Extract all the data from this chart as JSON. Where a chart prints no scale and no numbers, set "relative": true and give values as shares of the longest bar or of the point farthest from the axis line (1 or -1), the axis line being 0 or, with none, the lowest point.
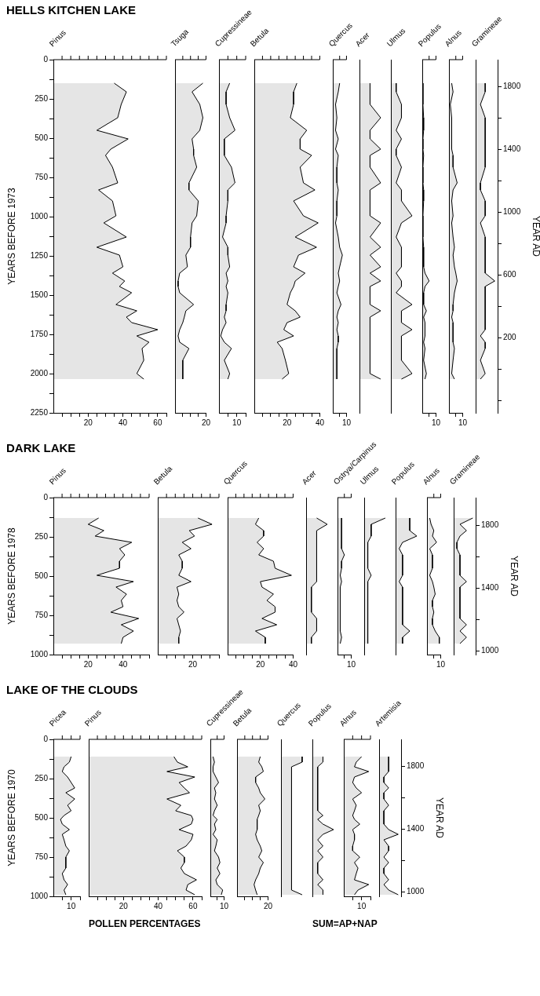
{
  "chart_data": [
    {
      "type": "area",
      "orientation": "horizontal",
      "title": "Pinus",
      "ylabel": "YEARS BEFORE 1973",
      "annotations": [
        "HELLS KITCHEN LAKE"
      ],
      "color": "#000000",
      "x": [
        150,
        205,
        285,
        370,
        450,
        505,
        570,
        610,
        685,
        785,
        830,
        900,
        995,
        1040,
        1130,
        1195,
        1245,
        1320,
        1360,
        1410,
        1445,
        1485,
        1560,
        1600,
        1640,
        1675,
        1720,
        1760,
        1800,
        1840,
        1915,
        2000,
        2035
      ],
      "values": [
        35,
        42,
        39,
        37,
        25,
        43,
        33,
        30,
        34,
        37,
        26,
        34,
        36,
        29,
        42,
        25,
        38,
        40,
        34,
        41,
        38,
        45,
        36,
        48,
        42,
        45,
        60,
        48,
        55,
        51,
        52,
        48,
        52
      ],
      "xlim": [
        0,
        65
      ],
      "xticks": [
        {
          "value": 5,
          "label": null
        },
        {
          "value": 10,
          "label": null
        },
        {
          "value": 15,
          "label": null
        },
        20,
        {
          "value": 25,
          "label": null
        },
        {
          "value": 30,
          "label": null
        },
        {
          "value": 35,
          "label": null
        },
        40,
        {
          "value": 45,
          "label": null
        },
        {
          "value": 50,
          "label": null
        },
        {
          "value": 55,
          "label": null
        },
        60,
        {
          "value": 65,
          "label": null
        }
      ],
      "ylim": [
        2250,
        0
      ],
      "yticks": [
        0,
        {
          "value": 125,
          "label": null
        },
        250,
        {
          "value": 375,
          "label": null
        },
        500,
        {
          "value": 625,
          "label": null
        },
        750,
        {
          "value": 875,
          "label": null
        },
        1000,
        {
          "value": 1125,
          "label": null
        },
        1250,
        {
          "value": 1375,
          "label": null
        },
        1500,
        {
          "value": 1625,
          "label": null
        },
        1750,
        {
          "value": 1875,
          "label": null
        },
        2000,
        {
          "value": 2125,
          "label": null
        },
        2250
      ]
    },
    {
      "type": "area",
      "orientation": "horizontal",
      "title": "Tsuga",
      "tick_labels": "x",
      "color": "#000000",
      "x": [
        150,
        205,
        285,
        370,
        450,
        505,
        570,
        610,
        685,
        785,
        830,
        900,
        995,
        1040,
        1130,
        1195,
        1245,
        1320,
        1360,
        1410,
        1445,
        1485,
        1560,
        1600,
        1640,
        1675,
        1720,
        1760,
        1800,
        1840,
        1915,
        2000,
        2035
      ],
      "values": [
        18,
        11,
        16,
        18,
        16,
        11,
        12,
        12,
        14,
        9,
        9,
        15,
        14,
        11,
        10,
        10,
        7,
        8,
        3,
        2,
        2,
        3,
        12,
        7,
        6,
        5,
        3,
        2,
        3,
        9,
        5,
        5,
        5
      ],
      "xlim": [
        0,
        20
      ],
      "xticks": [
        {
          "value": 5,
          "label": null
        },
        {
          "value": 10,
          "label": null
        },
        {
          "value": 15,
          "label": null
        },
        20
      ],
      "ylim": [
        2250,
        0
      ]
    },
    {
      "type": "area",
      "orientation": "horizontal",
      "title": "Cupressineae",
      "tick_labels": "x",
      "color": "#000000",
      "x": [
        150,
        205,
        285,
        370,
        450,
        505,
        570,
        610,
        685,
        785,
        830,
        900,
        995,
        1040,
        1130,
        1195,
        1245,
        1320,
        1360,
        1410,
        1445,
        1485,
        1560,
        1600,
        1640,
        1675,
        1720,
        1760,
        1800,
        1840,
        1915,
        2000,
        2035
      ],
      "values": [
        6,
        4,
        4,
        6,
        9,
        3,
        3,
        3,
        7,
        9,
        5,
        5,
        4,
        4,
        2,
        5,
        5,
        6,
        4,
        5,
        4,
        5,
        4,
        4,
        3,
        4,
        2,
        1,
        3,
        7,
        3,
        6,
        5
      ],
      "xlim": [
        0,
        15
      ],
      "xticks": [
        {
          "value": 5,
          "label": null
        },
        10,
        {
          "value": 15,
          "label": null
        }
      ],
      "ylim": [
        2250,
        0
      ]
    },
    {
      "type": "area",
      "orientation": "horizontal",
      "title": "Betula",
      "tick_labels": "x",
      "color": "#000000",
      "x": [
        150,
        205,
        285,
        370,
        450,
        505,
        570,
        610,
        685,
        785,
        830,
        900,
        995,
        1040,
        1130,
        1195,
        1245,
        1320,
        1360,
        1410,
        1445,
        1485,
        1560,
        1600,
        1640,
        1675,
        1720,
        1760,
        1800,
        1840,
        1915,
        2000,
        2035
      ],
      "values": [
        26,
        24,
        24,
        22,
        32,
        28,
        28,
        35,
        28,
        30,
        37,
        24,
        30,
        39,
        25,
        38,
        27,
        24,
        31,
        25,
        24,
        22,
        20,
        25,
        28,
        20,
        18,
        24,
        14,
        17,
        19,
        21,
        17
      ],
      "xlim": [
        0,
        40
      ],
      "xticks": [
        {
          "value": 5,
          "label": null
        },
        {
          "value": 10,
          "label": null
        },
        {
          "value": 15,
          "label": null
        },
        20,
        {
          "value": 25,
          "label": null
        },
        {
          "value": 30,
          "label": null
        },
        {
          "value": 35,
          "label": null
        },
        40
      ],
      "ylim": [
        2250,
        0
      ]
    },
    {
      "type": "area",
      "orientation": "horizontal",
      "title": "Quercus",
      "tick_labels": "x",
      "color": "#000000",
      "x": [
        150,
        205,
        285,
        370,
        450,
        505,
        570,
        610,
        685,
        785,
        830,
        900,
        995,
        1040,
        1130,
        1195,
        1245,
        1320,
        1360,
        1410,
        1445,
        1485,
        1560,
        1600,
        1640,
        1675,
        1720,
        1760,
        1800,
        1840,
        1915,
        2000,
        2035
      ],
      "values": [
        5,
        4,
        2,
        3,
        2,
        4,
        2,
        4,
        3,
        3,
        4,
        3,
        3,
        2,
        4,
        5,
        7,
        5,
        4,
        5,
        4,
        3,
        6,
        4,
        3,
        4,
        3,
        4,
        4,
        3,
        3,
        3,
        3
      ],
      "xlim": [
        0,
        10
      ],
      "xticks": [
        {
          "value": 5,
          "label": null
        },
        10
      ],
      "ylim": [
        2250,
        0
      ]
    },
    {
      "type": "area",
      "orientation": "horizontal",
      "title": "Acer",
      "tick_labels": false,
      "relative": true,
      "color": "#000000",
      "x": [
        150,
        205,
        285,
        370,
        450,
        505,
        570,
        610,
        685,
        785,
        830,
        900,
        995,
        1040,
        1130,
        1195,
        1245,
        1320,
        1360,
        1410,
        1445,
        1485,
        1560,
        1600,
        1640,
        1675,
        1720,
        1760,
        1800,
        1840,
        1915,
        2000,
        2035
      ],
      "values": [
        0.5,
        0.5,
        0.5,
        1,
        0.5,
        0.5,
        1,
        0.5,
        0.5,
        1,
        0.5,
        0.5,
        0.5,
        1,
        0.5,
        1,
        0.5,
        1,
        0.5,
        1,
        0.5,
        0.5,
        0.5,
        1,
        0.5,
        0.5,
        0.5,
        0.5,
        0.5,
        0.5,
        0.5,
        0.5,
        1
      ],
      "ylim": [
        2250,
        0
      ]
    },
    {
      "type": "area",
      "orientation": "horizontal",
      "title": "Ulmus",
      "tick_labels": false,
      "relative": true,
      "color": "#000000",
      "x": [
        150,
        205,
        285,
        370,
        450,
        505,
        570,
        610,
        685,
        785,
        830,
        900,
        995,
        1040,
        1130,
        1195,
        1245,
        1320,
        1360,
        1410,
        1445,
        1485,
        1560,
        1600,
        1640,
        1675,
        1720,
        1760,
        1800,
        1840,
        1915,
        2000,
        2035
      ],
      "values": [
        0.25,
        0.25,
        0.5,
        0.5,
        0.25,
        0.5,
        0.25,
        0.25,
        0.5,
        0.25,
        0.5,
        0.5,
        1,
        0.5,
        0.25,
        0.5,
        0.5,
        0.5,
        0.25,
        0.5,
        0.5,
        0.25,
        1,
        0.5,
        0.5,
        0.5,
        1,
        0.5,
        0.5,
        0.5,
        0.5,
        1,
        0.5
      ],
      "ylim": [
        2250,
        0
      ]
    },
    {
      "type": "area",
      "orientation": "horizontal",
      "title": "Populus",
      "tick_labels": "x",
      "color": "#000000",
      "x": [
        150,
        205,
        285,
        370,
        450,
        505,
        570,
        610,
        685,
        785,
        830,
        900,
        995,
        1040,
        1130,
        1195,
        1245,
        1320,
        1360,
        1410,
        1445,
        1485,
        1560,
        1600,
        1640,
        1675,
        1720,
        1760,
        1800,
        1840,
        1915,
        2000,
        2035
      ],
      "values": [
        0.5,
        0.5,
        0.5,
        1,
        1,
        0.5,
        0.5,
        1,
        0.5,
        0.5,
        1,
        1,
        0.5,
        0.5,
        0.5,
        1,
        1,
        1,
        2,
        5,
        2,
        1,
        1,
        3,
        1,
        2,
        2,
        2,
        1,
        2,
        1,
        3,
        2
      ],
      "xlim": [
        0,
        10
      ],
      "xticks": [
        {
          "value": 5,
          "label": null
        },
        10
      ],
      "ylim": [
        2250,
        0
      ]
    },
    {
      "type": "area",
      "orientation": "horizontal",
      "title": "Alnus",
      "tick_labels": "x",
      "color": "#000000",
      "x": [
        150,
        205,
        285,
        370,
        450,
        505,
        570,
        610,
        685,
        785,
        830,
        900,
        995,
        1040,
        1130,
        1195,
        1245,
        1320,
        1360,
        1410,
        1445,
        1485,
        1560,
        1600,
        1640,
        1675,
        1720,
        1760,
        1800,
        1840,
        1915,
        2000,
        2035
      ],
      "values": [
        2,
        3,
        1,
        2,
        2,
        2,
        2,
        3,
        3,
        6,
        3,
        2,
        3,
        2,
        3,
        4,
        3,
        4,
        5,
        6,
        5,
        4,
        3,
        3,
        2,
        3,
        3,
        3,
        3,
        4,
        3,
        2,
        4
      ],
      "xlim": [
        0,
        10
      ],
      "xticks": [
        {
          "value": 5,
          "label": null
        },
        10
      ],
      "ylim": [
        2250,
        0
      ]
    },
    {
      "type": "area",
      "orientation": "horizontal",
      "title": "Gramineae",
      "tick_labels": "y2",
      "relative": true,
      "color": "#000000",
      "y2label": "YEAR AD",
      "x": [
        150,
        205,
        285,
        370,
        450,
        505,
        570,
        610,
        685,
        785,
        830,
        900,
        995,
        1040,
        1130,
        1195,
        1245,
        1320,
        1360,
        1410,
        1445,
        1485,
        1560,
        1600,
        1640,
        1675,
        1720,
        1760,
        1800,
        1840,
        1915,
        2000,
        2035
      ],
      "values": [
        0.5,
        0.5,
        0.25,
        0.5,
        0.5,
        0.5,
        0.5,
        0.5,
        0.5,
        0.25,
        0.25,
        0.5,
        0.5,
        0.25,
        0.5,
        0.5,
        0.5,
        0.5,
        0.5,
        1,
        0.5,
        0.5,
        0.5,
        0.5,
        0.5,
        0.5,
        0.5,
        0.25,
        0.5,
        0.5,
        0.25,
        0.5,
        0.25
      ],
      "ylim": [
        2250,
        0
      ],
      "y2lim": [
        -277,
        1973
      ],
      "y2ticks": [
        1800,
        {
          "value": 1600,
          "label": null
        },
        1400,
        {
          "value": 1200,
          "label": null
        },
        1000,
        {
          "value": 800,
          "label": null
        },
        600,
        {
          "value": 400,
          "label": null
        },
        200,
        {
          "value": 0,
          "label": null
        },
        {
          "value": -200,
          "label": null
        }
      ]
    },
    {
      "type": "area",
      "orientation": "horizontal",
      "title": "Pinus",
      "ylabel": "YEARS BEFORE 1978",
      "annotations": [
        "DARK LAKE"
      ],
      "color": "#000000",
      "x": [
        130,
        170,
        210,
        245,
        285,
        325,
        365,
        405,
        450,
        495,
        535,
        570,
        615,
        655,
        695,
        730,
        770,
        810,
        850,
        890,
        930
      ],
      "values": [
        26,
        20,
        29,
        24,
        45,
        38,
        41,
        38,
        38,
        25,
        46,
        36,
        42,
        39,
        40,
        33,
        49,
        39,
        46,
        40,
        39
      ],
      "xlim": [
        0,
        55
      ],
      "xticks": [
        {
          "value": 5,
          "label": null
        },
        {
          "value": 10,
          "label": null
        },
        {
          "value": 15,
          "label": null
        },
        20,
        {
          "value": 25,
          "label": null
        },
        {
          "value": 30,
          "label": null
        },
        {
          "value": 35,
          "label": null
        },
        40,
        {
          "value": 45,
          "label": null
        },
        {
          "value": 50,
          "label": null
        },
        {
          "value": 55,
          "label": null
        }
      ],
      "ylim": [
        1000,
        0
      ],
      "yticks": [
        0,
        {
          "value": 125,
          "label": null
        },
        250,
        {
          "value": 375,
          "label": null
        },
        500,
        {
          "value": 625,
          "label": null
        },
        750,
        {
          "value": 875,
          "label": null
        },
        1000
      ]
    },
    {
      "type": "area",
      "orientation": "horizontal",
      "title": "Betula",
      "tick_labels": "x",
      "color": "#000000",
      "x": [
        130,
        170,
        210,
        245,
        285,
        325,
        365,
        405,
        450,
        495,
        535,
        570,
        615,
        655,
        695,
        730,
        770,
        810,
        850,
        890,
        930
      ],
      "values": [
        23,
        31,
        18,
        21,
        14,
        19,
        12,
        14,
        14,
        12,
        19,
        11,
        12,
        11,
        12,
        15,
        11,
        12,
        13,
        12,
        12
      ],
      "xlim": [
        0,
        35
      ],
      "xticks": [
        {
          "value": 5,
          "label": null
        },
        {
          "value": 10,
          "label": null
        },
        {
          "value": 15,
          "label": null
        },
        20,
        {
          "value": 25,
          "label": null
        },
        {
          "value": 30,
          "label": null
        },
        {
          "value": 35,
          "label": null
        }
      ],
      "ylim": [
        1000,
        0
      ]
    },
    {
      "type": "area",
      "orientation": "horizontal",
      "title": "Quercus",
      "tick_labels": "x",
      "color": "#000000",
      "x": [
        130,
        170,
        210,
        245,
        285,
        325,
        365,
        405,
        450,
        495,
        535,
        570,
        615,
        655,
        695,
        730,
        770,
        810,
        850,
        890,
        930
      ],
      "values": [
        19,
        17,
        22,
        22,
        18,
        22,
        19,
        28,
        29,
        39,
        20,
        21,
        28,
        24,
        29,
        29,
        21,
        30,
        17,
        23,
        23
      ],
      "xlim": [
        0,
        40
      ],
      "xticks": [
        {
          "value": 5,
          "label": null
        },
        {
          "value": 10,
          "label": null
        },
        {
          "value": 15,
          "label": null
        },
        20,
        {
          "value": 25,
          "label": null
        },
        {
          "value": 30,
          "label": null
        },
        {
          "value": 35,
          "label": null
        },
        40
      ],
      "ylim": [
        1000,
        0
      ]
    },
    {
      "type": "area",
      "orientation": "horizontal",
      "title": "Acer",
      "tick_labels": false,
      "relative": true,
      "color": "#000000",
      "x": [
        130,
        170,
        210,
        245,
        285,
        325,
        365,
        405,
        450,
        495,
        535,
        570,
        615,
        655,
        695,
        730,
        770,
        810,
        850,
        890,
        930
      ],
      "values": [
        0.5,
        1,
        0.5,
        0.5,
        0.5,
        0.5,
        0.5,
        0.5,
        0.5,
        0.5,
        0.5,
        0.25,
        0.25,
        0.25,
        0.25,
        0.25,
        0.5,
        0.5,
        0.5,
        0.25,
        0.25
      ],
      "ylim": [
        1000,
        0
      ]
    },
    {
      "type": "area",
      "orientation": "horizontal",
      "title": "Ostrya/Carpinus",
      "tick_labels": "x",
      "color": "#000000",
      "x": [
        130,
        170,
        210,
        245,
        285,
        325,
        365,
        405,
        450,
        495,
        535,
        570,
        615,
        655,
        695,
        730,
        770,
        810,
        850,
        890,
        930
      ],
      "values": [
        3,
        3,
        3,
        3,
        3,
        3,
        5,
        3,
        3,
        2,
        3,
        2,
        2,
        2,
        2,
        2,
        2,
        2,
        2,
        3,
        2
      ],
      "xlim": [
        0,
        10
      ],
      "xticks": [
        {
          "value": 5,
          "label": null
        },
        10
      ],
      "ylim": [
        1000,
        0
      ]
    },
    {
      "type": "area",
      "orientation": "horizontal",
      "title": "Ulmus",
      "tick_labels": false,
      "relative": true,
      "color": "#000000",
      "x": [
        130,
        170,
        210,
        245,
        285,
        325,
        365,
        405,
        450,
        495,
        535,
        570,
        615,
        655,
        695,
        730,
        770,
        810,
        850,
        890,
        930
      ],
      "values": [
        1,
        0.33,
        0.33,
        0.33,
        0.17,
        0.17,
        0.17,
        0.17,
        0.17,
        0.33,
        0.17,
        0.17,
        0.17,
        0.17,
        0.17,
        0.17,
        0.17,
        0.17,
        0.17,
        0.17,
        0.17
      ],
      "ylim": [
        1000,
        0
      ]
    },
    {
      "type": "area",
      "orientation": "horizontal",
      "title": "Populus",
      "tick_labels": false,
      "relative": true,
      "color": "#000000",
      "x": [
        130,
        170,
        210,
        245,
        285,
        325,
        365,
        405,
        450,
        495,
        535,
        570,
        615,
        655,
        695,
        730,
        770,
        810,
        850,
        890,
        930
      ],
      "values": [
        0.67,
        0.67,
        0.67,
        1,
        0.33,
        0.17,
        0.33,
        0.33,
        0.33,
        0.33,
        0.17,
        0.33,
        0.33,
        0.33,
        0.33,
        0.33,
        0.33,
        0.33,
        0.67,
        0.33,
        0.33
      ],
      "ylim": [
        1000,
        0
      ]
    },
    {
      "type": "area",
      "orientation": "horizontal",
      "title": "Alnus",
      "tick_labels": "x",
      "color": "#000000",
      "x": [
        130,
        170,
        210,
        245,
        285,
        325,
        365,
        405,
        450,
        495,
        535,
        570,
        615,
        655,
        695,
        730,
        770,
        810,
        850,
        890,
        930
      ],
      "values": [
        2,
        3,
        5,
        4,
        7,
        2,
        4,
        4,
        4,
        2,
        4,
        5,
        6,
        4,
        4,
        5,
        4,
        4,
        6,
        9,
        9
      ],
      "xlim": [
        0,
        10
      ],
      "xticks": [
        {
          "value": 5,
          "label": null
        },
        10
      ],
      "ylim": [
        1000,
        0
      ]
    },
    {
      "type": "area",
      "orientation": "horizontal",
      "title": "Gramineae",
      "tick_labels": "y2",
      "relative": true,
      "color": "#000000",
      "y2label": "YEAR AD",
      "x": [
        130,
        170,
        210,
        245,
        285,
        325,
        365,
        405,
        450,
        495,
        535,
        570,
        615,
        655,
        695,
        730,
        770,
        810,
        850,
        890,
        930
      ],
      "values": [
        1,
        0.33,
        0.67,
        0.33,
        0.17,
        0.17,
        0.33,
        0.33,
        0.33,
        0.33,
        0.67,
        0.33,
        0.33,
        0.33,
        0.33,
        0.33,
        0.33,
        0.67,
        0.33,
        0.67,
        0.33
      ],
      "ylim": [
        1000,
        0
      ],
      "y2lim": [
        978,
        1978
      ],
      "y2ticks": [
        1800,
        {
          "value": 1600,
          "label": null
        },
        1400,
        {
          "value": 1200,
          "label": null
        },
        1000
      ]
    },
    {
      "type": "area",
      "orientation": "horizontal",
      "title": "Picea",
      "ylabel": "YEARS BEFORE 1970",
      "annotations": [
        "LAKE OF THE CLOUDS"
      ],
      "color": "#000000",
      "x": [
        110,
        145,
        175,
        205,
        240,
        275,
        310,
        340,
        380,
        420,
        455,
        485,
        510,
        540,
        575,
        605,
        640,
        680,
        710,
        750,
        785,
        820,
        855,
        895,
        925,
        960,
        990
      ],
      "values": [
        10,
        9,
        6,
        5,
        8,
        10,
        12,
        7,
        12,
        8,
        10,
        6,
        4,
        5,
        9,
        5,
        6,
        7,
        9,
        7,
        7,
        7,
        5,
        6,
        8,
        6,
        7
      ],
      "xlim": [
        0,
        15
      ],
      "xticks": [
        {
          "value": 5,
          "label": null
        },
        10,
        {
          "value": 15,
          "label": null
        }
      ],
      "ylim": [
        1000,
        0
      ],
      "yticks": [
        0,
        {
          "value": 125,
          "label": null
        },
        250,
        {
          "value": 375,
          "label": null
        },
        500,
        {
          "value": 625,
          "label": null
        },
        750,
        {
          "value": 875,
          "label": null
        },
        1000
      ]
    },
    {
      "type": "area",
      "orientation": "horizontal",
      "title": "Pinus",
      "tick_labels": "x",
      "annotations": [
        "POLLEN PERCENTAGES"
      ],
      "color": "#000000",
      "x": [
        110,
        145,
        175,
        205,
        240,
        275,
        310,
        340,
        380,
        420,
        455,
        485,
        510,
        540,
        575,
        605,
        640,
        680,
        710,
        750,
        785,
        820,
        855,
        895,
        925,
        960,
        990
      ],
      "values": [
        49,
        51,
        57,
        45,
        61,
        52,
        55,
        58,
        45,
        53,
        50,
        59,
        60,
        59,
        52,
        60,
        59,
        56,
        51,
        55,
        55,
        53,
        55,
        62,
        57,
        56,
        61
      ],
      "xlim": [
        0,
        65
      ],
      "xticks": [
        {
          "value": 5,
          "label": null
        },
        {
          "value": 10,
          "label": null
        },
        {
          "value": 15,
          "label": null
        },
        20,
        {
          "value": 25,
          "label": null
        },
        {
          "value": 30,
          "label": null
        },
        {
          "value": 35,
          "label": null
        },
        40,
        {
          "value": 45,
          "label": null
        },
        {
          "value": 50,
          "label": null
        },
        {
          "value": 55,
          "label": null
        },
        60,
        {
          "value": 65,
          "label": null
        }
      ],
      "ylim": [
        1000,
        0
      ]
    },
    {
      "type": "area",
      "orientation": "horizontal",
      "title": "Cupressineae",
      "tick_labels": "x",
      "color": "#000000",
      "x": [
        110,
        145,
        175,
        205,
        240,
        275,
        310,
        340,
        380,
        420,
        455,
        485,
        510,
        540,
        575,
        605,
        640,
        680,
        710,
        750,
        785,
        820,
        855,
        895,
        925,
        960,
        990
      ],
      "values": [
        2,
        3,
        2,
        2,
        4,
        6,
        3,
        4,
        3,
        5,
        3,
        2,
        5,
        3,
        4,
        2,
        5,
        4,
        3,
        6,
        7,
        5,
        7,
        4,
        5,
        9,
        8
      ],
      "xlim": [
        0,
        10
      ],
      "xticks": [
        {
          "value": 5,
          "label": null
        },
        10
      ],
      "ylim": [
        1000,
        0
      ]
    },
    {
      "type": "area",
      "orientation": "horizontal",
      "title": "Betula",
      "tick_labels": "x",
      "color": "#000000",
      "x": [
        110,
        145,
        175,
        205,
        240,
        275,
        310,
        340,
        380,
        420,
        455,
        485,
        510,
        540,
        575,
        605,
        640,
        680,
        710,
        750,
        785,
        820,
        855,
        895,
        925,
        960,
        990
      ],
      "values": [
        15,
        14,
        16,
        17,
        12,
        12,
        14,
        15,
        18,
        14,
        15,
        14,
        13,
        13,
        13,
        12,
        13,
        15,
        16,
        14,
        17,
        15,
        14,
        12,
        11,
        12,
        13
      ],
      "xlim": [
        0,
        20
      ],
      "xticks": [
        {
          "value": 5,
          "label": null
        },
        {
          "value": 10,
          "label": null
        },
        {
          "value": 15,
          "label": null
        },
        20
      ],
      "ylim": [
        1000,
        0
      ]
    },
    {
      "type": "area",
      "orientation": "horizontal",
      "title": "Quercus",
      "tick_labels": false,
      "relative": true,
      "color": "#000000",
      "x": [
        110,
        145,
        175,
        205,
        240,
        275,
        310,
        340,
        380,
        420,
        455,
        485,
        510,
        540,
        575,
        605,
        640,
        680,
        710,
        750,
        785,
        820,
        855,
        895,
        925,
        960,
        990
      ],
      "values": [
        1,
        1,
        0.5,
        0.5,
        0.5,
        0.5,
        0.5,
        0.5,
        0.5,
        0.5,
        0.5,
        0.5,
        0.5,
        0.5,
        0.5,
        0.5,
        0.5,
        0.5,
        0.5,
        0.5,
        0.5,
        0.5,
        0.5,
        0.5,
        0.5,
        0.5,
        1
      ],
      "ylim": [
        1000,
        0
      ]
    },
    {
      "type": "area",
      "orientation": "horizontal",
      "title": "Populus",
      "tick_labels": false,
      "relative": true,
      "annotations": [
        "SUM=AP+NAP"
      ],
      "color": "#000000",
      "x": [
        110,
        145,
        175,
        205,
        240,
        275,
        310,
        340,
        380,
        420,
        455,
        485,
        510,
        540,
        575,
        605,
        640,
        680,
        710,
        750,
        785,
        820,
        855,
        895,
        925,
        960,
        990
      ],
      "values": [
        0.5,
        0.5,
        0.25,
        0.25,
        0.25,
        0.25,
        0.25,
        0.25,
        0.25,
        0.25,
        0.25,
        0.5,
        0.25,
        0.5,
        1,
        0.5,
        0.25,
        0.5,
        0.25,
        0.5,
        0.25,
        0.25,
        0.25,
        0.5,
        0.25,
        0.5,
        0.5
      ],
      "ylim": [
        1000,
        0
      ]
    },
    {
      "type": "area",
      "orientation": "horizontal",
      "title": "Alnus",
      "tick_labels": "x",
      "color": "#000000",
      "x": [
        110,
        145,
        175,
        205,
        240,
        275,
        310,
        340,
        380,
        420,
        455,
        485,
        510,
        540,
        575,
        605,
        640,
        680,
        710,
        750,
        785,
        820,
        855,
        895,
        925,
        960,
        990
      ],
      "values": [
        10,
        7,
        6,
        14,
        6,
        5,
        7,
        10,
        5,
        7,
        6,
        5,
        6,
        9,
        5,
        6,
        6,
        5,
        5,
        9,
        6,
        8,
        7,
        6,
        14,
        8,
        6
      ],
      "xlim": [
        0,
        15
      ],
      "xticks": [
        {
          "value": 5,
          "label": null
        },
        10,
        {
          "value": 15,
          "label": null
        }
      ],
      "ylim": [
        1000,
        0
      ]
    },
    {
      "type": "area",
      "orientation": "horizontal",
      "title": "Artemisia",
      "tick_labels": "y2",
      "relative": true,
      "color": "#000000",
      "y2label": "YEAR AD",
      "x": [
        110,
        145,
        175,
        205,
        240,
        275,
        310,
        340,
        380,
        420,
        455,
        485,
        510,
        540,
        575,
        605,
        640,
        680,
        710,
        750,
        785,
        820,
        855,
        895,
        925,
        960,
        990
      ],
      "values": [
        0.5,
        0.5,
        0.5,
        0.5,
        0.25,
        0.25,
        0.5,
        0.25,
        0.25,
        0.5,
        0.25,
        0.25,
        0.25,
        0.25,
        0.5,
        1,
        0.25,
        0.5,
        0.5,
        0.25,
        0.5,
        0.25,
        0.25,
        0.5,
        0.25,
        0.5,
        1
      ],
      "ylim": [
        1000,
        0
      ],
      "y2lim": [
        970,
        1970
      ],
      "y2ticks": [
        1800,
        {
          "value": 1600,
          "label": null
        },
        1400,
        {
          "value": 1200,
          "label": null
        },
        1000
      ]
    }
  ]
}
